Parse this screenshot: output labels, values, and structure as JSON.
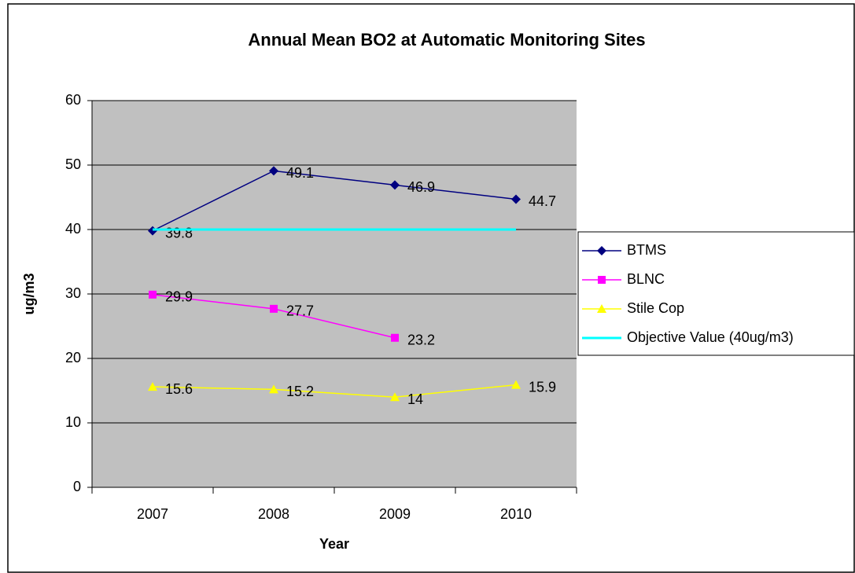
{
  "chart_data": {
    "type": "line",
    "title": "Annual Mean BO2 at Automatic Monitoring Sites",
    "x_label": "Year",
    "y_label": "ug/m3",
    "categories": [
      "2007",
      "2008",
      "2009",
      "2010"
    ],
    "series": [
      {
        "name": "BTMS",
        "color": "#000080",
        "marker": "diamond",
        "data_labels": true,
        "values": [
          39.8,
          49.1,
          46.9,
          44.7
        ]
      },
      {
        "name": "BLNC",
        "color": "#ff00ff",
        "marker": "square",
        "data_labels": true,
        "values": [
          29.9,
          27.7,
          23.2,
          null
        ]
      },
      {
        "name": "Stile Cop",
        "color": "#ffff00",
        "marker": "triangle",
        "data_labels": true,
        "values": [
          15.6,
          15.2,
          14,
          15.9
        ]
      },
      {
        "name": "Objective Value (40ug/m3)",
        "color": "#00ffff",
        "marker": "none",
        "data_labels": false,
        "values": [
          40,
          40,
          40,
          40
        ]
      }
    ],
    "ylim": [
      0,
      60
    ],
    "yticks": [
      0,
      10,
      20,
      30,
      40,
      50,
      60
    ],
    "grid": true,
    "legend": "right"
  }
}
